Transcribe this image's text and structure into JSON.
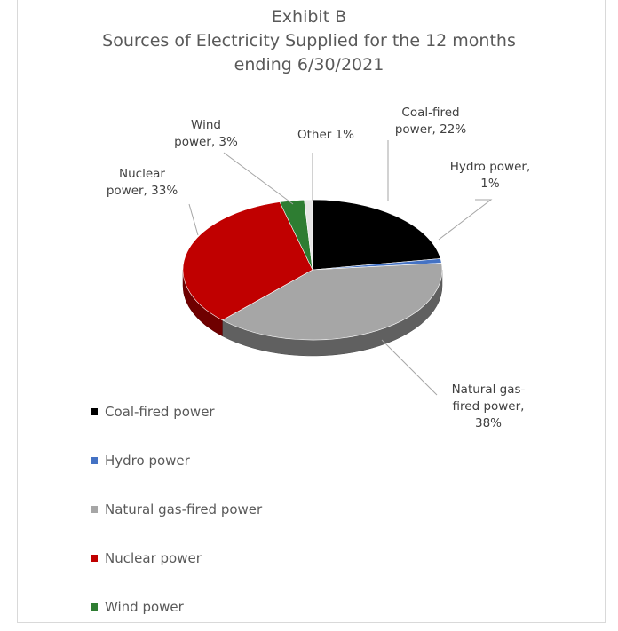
{
  "chart_data": {
    "type": "pie",
    "title_lines": [
      "Exhibit B",
      "Sources of Electricity Supplied for the 12 months",
      "ending 6/30/2021"
    ],
    "slices": [
      {
        "name": "Coal-fired power",
        "value": 22,
        "color": "#000000",
        "label_lines": [
          "Coal-fired",
          "power, 22%"
        ]
      },
      {
        "name": "Hydro power",
        "value": 1,
        "color": "#4472c4",
        "label_lines": [
          "Hydro power,",
          "1%"
        ]
      },
      {
        "name": "Natural gas-fired power",
        "value": 38,
        "color": "#a6a6a6",
        "label_lines": [
          "Natural gas-",
          "fired power,",
          "38%"
        ]
      },
      {
        "name": "Nuclear power",
        "value": 33,
        "color": "#c00000",
        "label_lines": [
          "Nuclear",
          "power, 33%"
        ]
      },
      {
        "name": "Wind power",
        "value": 3,
        "color": "#2e7d32",
        "label_lines": [
          "Wind",
          "power, 3%"
        ]
      },
      {
        "name": "Other",
        "value": 1,
        "color": "#e7e6e6",
        "label_lines": [
          "Other  1%"
        ]
      }
    ],
    "legend": [
      "Coal-fired power",
      "Hydro power",
      "Natural gas-fired power",
      "Nuclear power",
      "Wind power"
    ],
    "legend_colors": [
      "#000000",
      "#4472c4",
      "#a6a6a6",
      "#c00000",
      "#2e7d32"
    ],
    "legend_position": "bottom-left",
    "style": "3d"
  }
}
